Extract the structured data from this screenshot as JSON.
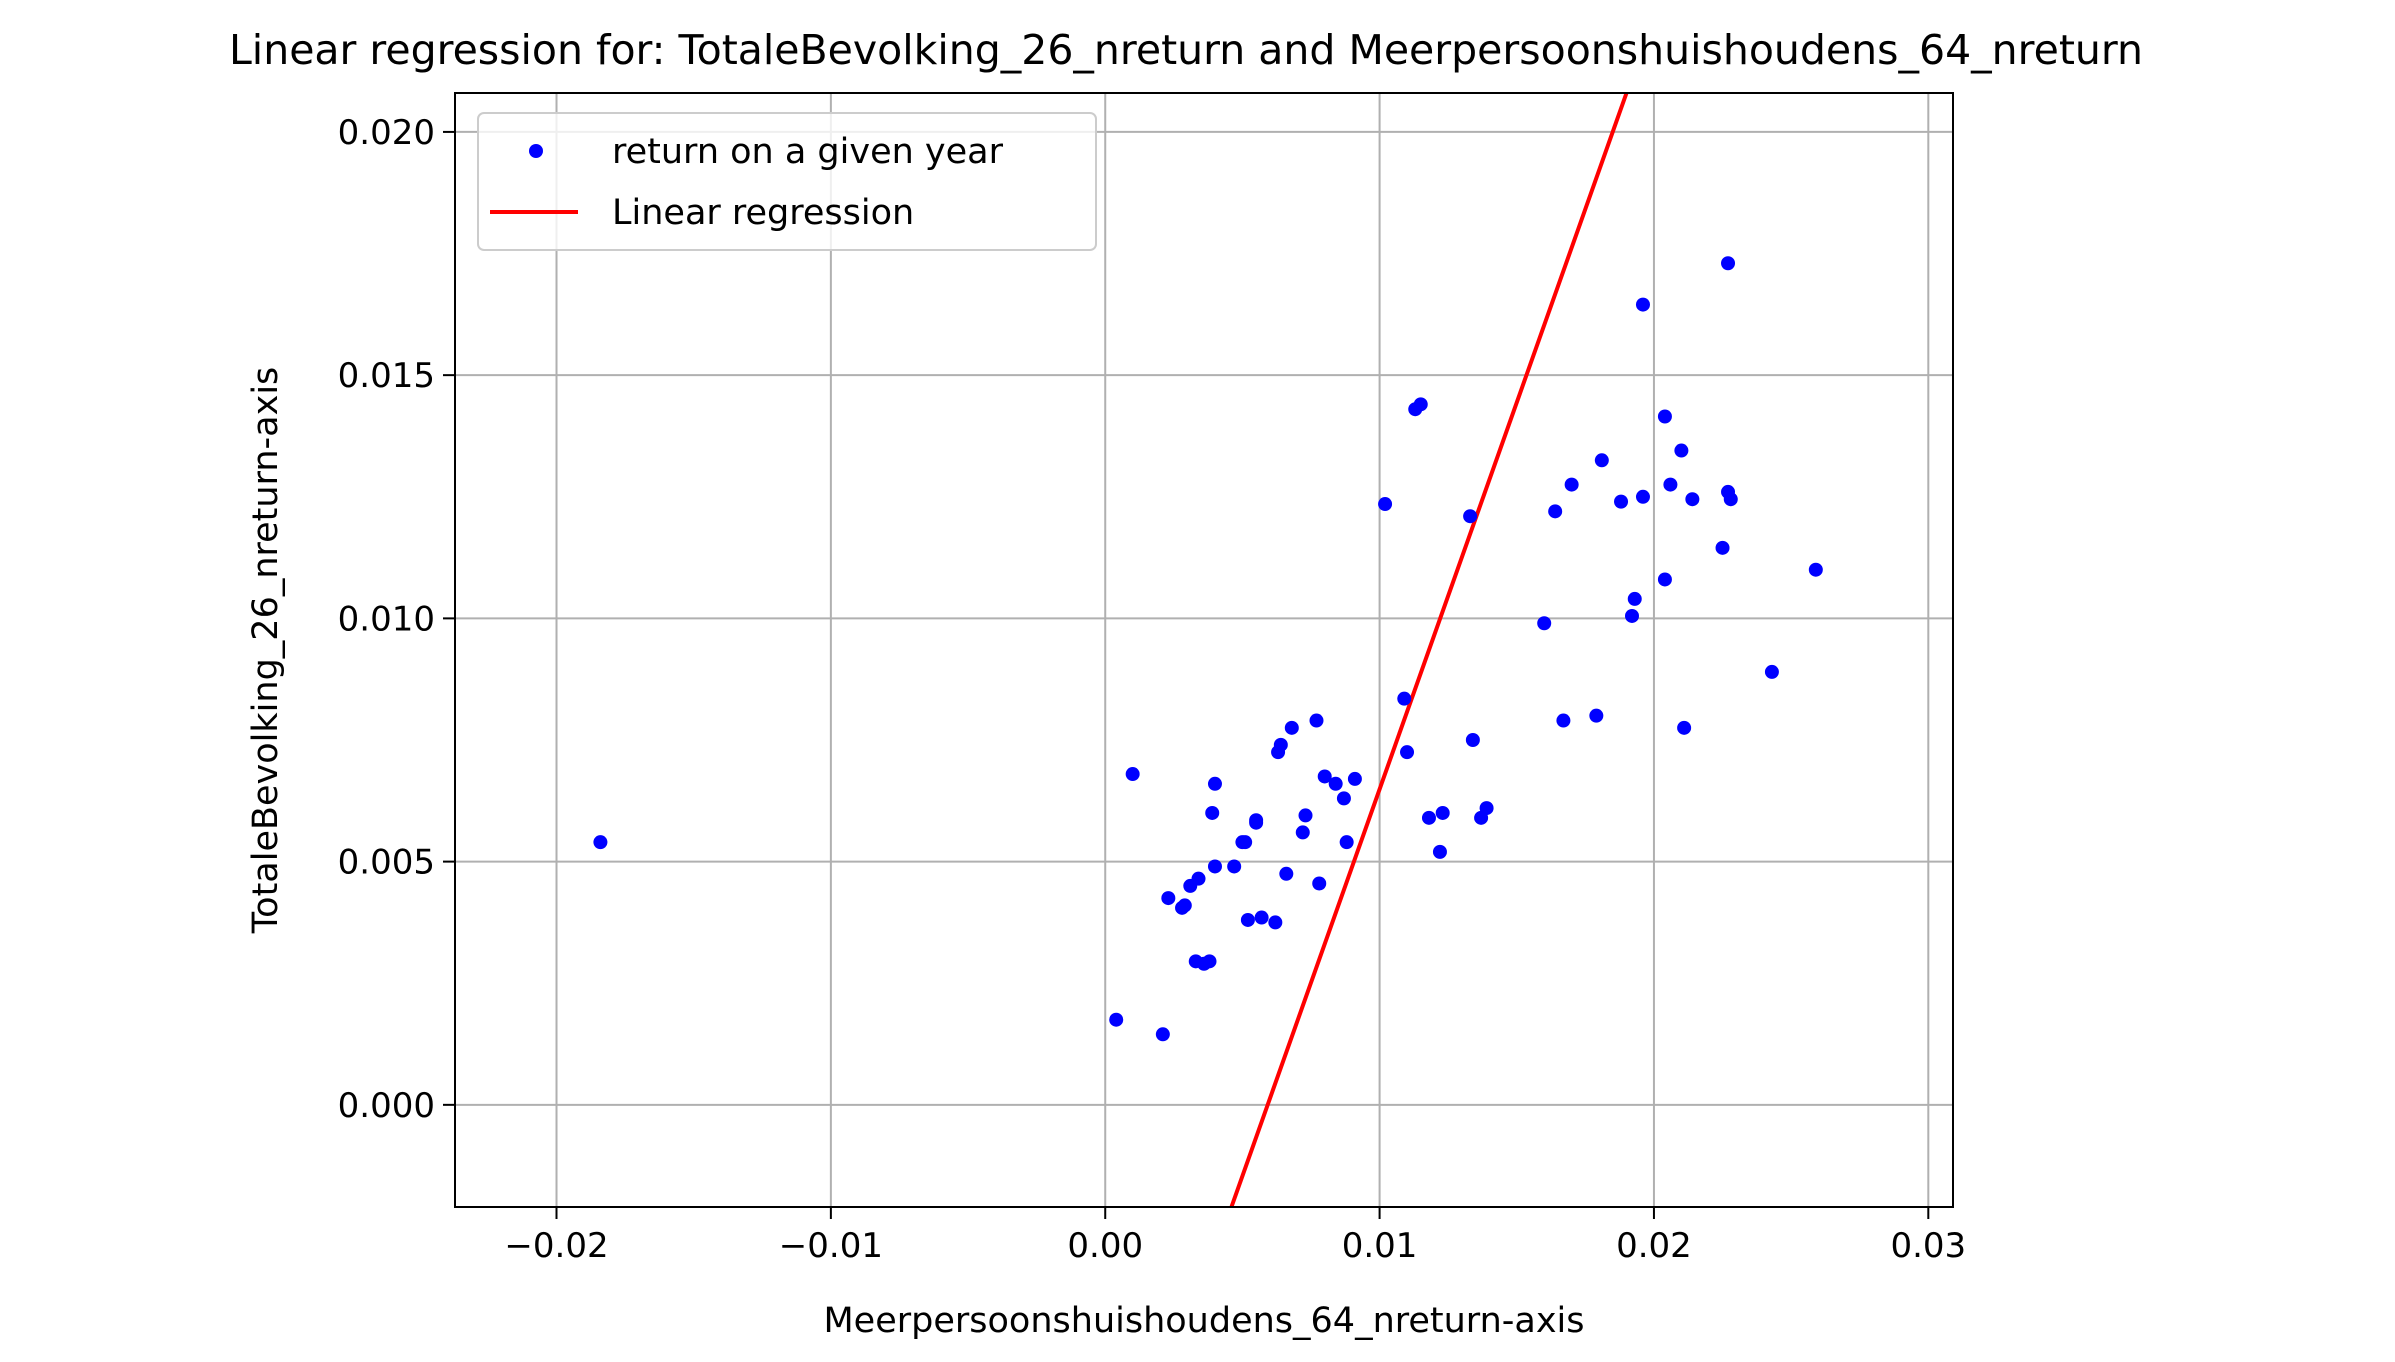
{
  "chart_data": {
    "type": "scatter",
    "title": "Linear regression for: TotaleBevolking_26_nreturn and Meerpersoonshuishoudens_64_nreturn",
    "xlabel": "Meerpersoonshuishoudens_64_nreturn-axis",
    "ylabel": "TotaleBevolking_26_nreturn-axis",
    "xlim": [
      -0.0237,
      0.0309
    ],
    "ylim": [
      -0.0021,
      0.0208
    ],
    "xticks": [
      -0.02,
      -0.01,
      0.0,
      0.01,
      0.02,
      0.03
    ],
    "xtick_labels": [
      "−0.02",
      "−0.01",
      "0.00",
      "0.01",
      "0.02",
      "0.03"
    ],
    "yticks": [
      0.0,
      0.005,
      0.01,
      0.015,
      0.02
    ],
    "ytick_labels": [
      "0.000",
      "0.005",
      "0.010",
      "0.015",
      "0.020"
    ],
    "grid": true,
    "legend_position": "top-left",
    "series": [
      {
        "name": "return on a given year",
        "kind": "scatter",
        "color": "#0000ff",
        "points": [
          [
            -0.0184,
            0.0054
          ],
          [
            0.0004,
            0.00175
          ],
          [
            0.001,
            0.0068
          ],
          [
            0.0021,
            0.00145
          ],
          [
            0.0023,
            0.00425
          ],
          [
            0.0028,
            0.00405
          ],
          [
            0.0029,
            0.0041
          ],
          [
            0.0031,
            0.0045
          ],
          [
            0.0033,
            0.00295
          ],
          [
            0.0034,
            0.00465
          ],
          [
            0.0036,
            0.0029
          ],
          [
            0.0038,
            0.00295
          ],
          [
            0.0039,
            0.006
          ],
          [
            0.004,
            0.0049
          ],
          [
            0.004,
            0.0066
          ],
          [
            0.0047,
            0.0049
          ],
          [
            0.005,
            0.0054
          ],
          [
            0.0051,
            0.0054
          ],
          [
            0.0052,
            0.0038
          ],
          [
            0.0055,
            0.0058
          ],
          [
            0.0055,
            0.00585
          ],
          [
            0.0057,
            0.00385
          ],
          [
            0.0062,
            0.00375
          ],
          [
            0.0063,
            0.00725
          ],
          [
            0.0064,
            0.0074
          ],
          [
            0.0066,
            0.00475
          ],
          [
            0.0068,
            0.00775
          ],
          [
            0.0072,
            0.0056
          ],
          [
            0.0073,
            0.00595
          ],
          [
            0.0077,
            0.0079
          ],
          [
            0.0078,
            0.00455
          ],
          [
            0.008,
            0.00675
          ],
          [
            0.0084,
            0.0066
          ],
          [
            0.0087,
            0.0063
          ],
          [
            0.0088,
            0.0054
          ],
          [
            0.0091,
            0.0067
          ],
          [
            0.0102,
            0.01235
          ],
          [
            0.0109,
            0.00835
          ],
          [
            0.011,
            0.00725
          ],
          [
            0.0113,
            0.0143
          ],
          [
            0.0115,
            0.0144
          ],
          [
            0.0118,
            0.0059
          ],
          [
            0.0122,
            0.0052
          ],
          [
            0.0123,
            0.006
          ],
          [
            0.0133,
            0.0121
          ],
          [
            0.0134,
            0.0075
          ],
          [
            0.0137,
            0.0059
          ],
          [
            0.0139,
            0.0061
          ],
          [
            0.016,
            0.0099
          ],
          [
            0.0164,
            0.0122
          ],
          [
            0.0167,
            0.0079
          ],
          [
            0.017,
            0.01275
          ],
          [
            0.0179,
            0.008
          ],
          [
            0.0181,
            0.01325
          ],
          [
            0.0188,
            0.0124
          ],
          [
            0.0192,
            0.01005
          ],
          [
            0.0193,
            0.0104
          ],
          [
            0.0196,
            0.0125
          ],
          [
            0.0196,
            0.01645
          ],
          [
            0.0204,
            0.01415
          ],
          [
            0.0204,
            0.0108
          ],
          [
            0.0206,
            0.01275
          ],
          [
            0.021,
            0.01345
          ],
          [
            0.0211,
            0.00775
          ],
          [
            0.0214,
            0.01245
          ],
          [
            0.0225,
            0.01145
          ],
          [
            0.0227,
            0.0126
          ],
          [
            0.0227,
            0.0173
          ],
          [
            0.0228,
            0.01245
          ],
          [
            0.0243,
            0.0089
          ],
          [
            0.0259,
            0.011
          ]
        ]
      },
      {
        "name": "Linear regression",
        "kind": "line",
        "color": "#ff0000",
        "points": [
          [
            0.0046,
            -0.0021
          ],
          [
            0.019,
            0.0208
          ]
        ]
      }
    ]
  }
}
